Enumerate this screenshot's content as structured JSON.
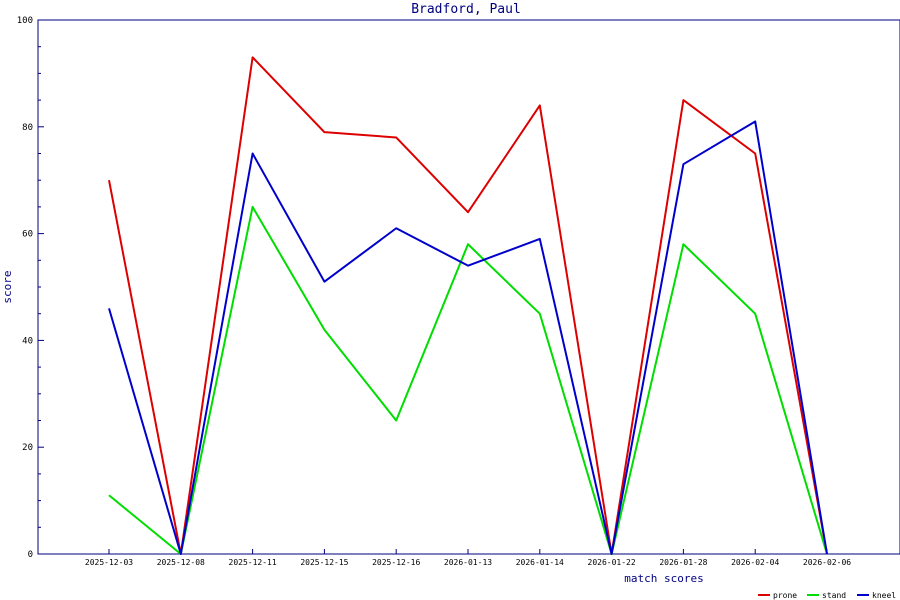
{
  "chart_data": {
    "type": "line",
    "title": "Bradford, Paul",
    "xlabel": "match scores",
    "ylabel": "score",
    "categories": [
      "2025-12-03",
      "2025-12-08",
      "2025-12-11",
      "2025-12-15",
      "2025-12-16",
      "2026-01-13",
      "2026-01-14",
      "2026-01-22",
      "2026-01-28",
      "2026-02-04",
      "2026-02-06"
    ],
    "ylim": [
      0,
      100
    ],
    "yticks": [
      0,
      20,
      40,
      60,
      80,
      100
    ],
    "grid": false,
    "legend_position": "bottom-right",
    "series": [
      {
        "name": "prone",
        "color": "#dd0000",
        "values": [
          70,
          0,
          93,
          79,
          78,
          64,
          84,
          0,
          85,
          75,
          0
        ]
      },
      {
        "name": "stand",
        "color": "#00dd00",
        "values": [
          11,
          0,
          65,
          42,
          25,
          58,
          45,
          0,
          58,
          45,
          0
        ]
      },
      {
        "name": "kneel",
        "color": "#0000cc",
        "values": [
          46,
          0,
          75,
          51,
          61,
          54,
          59,
          0,
          73,
          81,
          0
        ]
      }
    ]
  }
}
